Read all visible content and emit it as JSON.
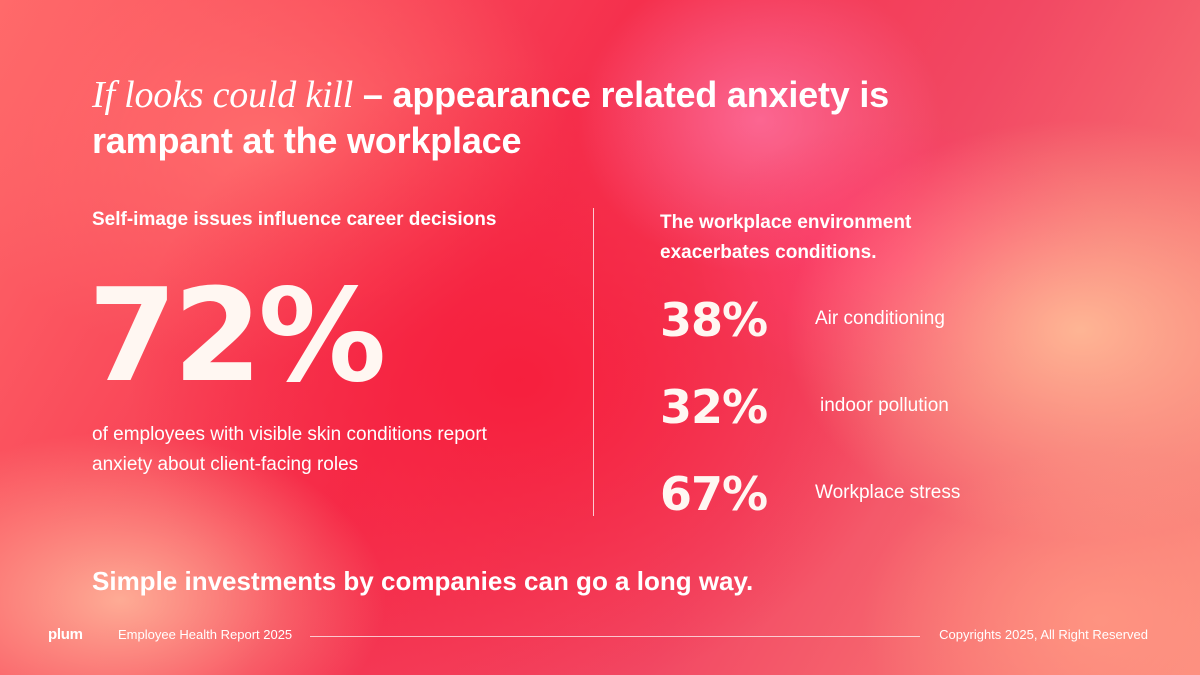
{
  "headline": {
    "italic": "If looks could kill",
    "rest": "– appearance related anxiety is rampant at the workplace"
  },
  "left": {
    "subtitle": "Self-image issues influence career decisions",
    "stat": "72%",
    "caption": "of employees with visible skin conditions report anxiety about client-facing roles"
  },
  "right": {
    "subtitle": "The workplace environment exacerbates conditions.",
    "stats": [
      {
        "value": "38%",
        "label": "Air conditioning"
      },
      {
        "value": "32%",
        "label": "indoor pollution"
      },
      {
        "value": "67%",
        "label": "Workplace stress"
      }
    ]
  },
  "closing": "Simple investments by companies can go a long way.",
  "footer": {
    "logo": "plum",
    "report": "Employee Health Report 2025",
    "copyright": "Copyrights 2025, All Right Reserved"
  },
  "colors": {
    "background": "#f4455a",
    "text": "#ffffff"
  }
}
